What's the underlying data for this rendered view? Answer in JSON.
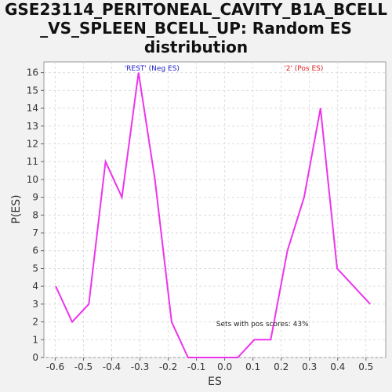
{
  "title_lines": [
    "GSE23114_PERITONEAL_CAVITY_B1A_BCELL",
    "_VS_SPLEEN_BCELL_UP: Random ES",
    "distribution"
  ],
  "colors": {
    "line": "#ee33ee",
    "neg_label": "#2222cc",
    "pos_label": "#dd2222",
    "plot_bg": "#ffffff",
    "grid": "#dddddd"
  },
  "chart_data": {
    "type": "line",
    "title": "GSE23114_PERITONEAL_CAVITY_B1A_BCELL_VS_SPLEEN_BCELL_UP: Random ES distribution",
    "xlabel": "ES",
    "ylabel": "P(ES)",
    "xlim": [
      -0.64,
      0.57
    ],
    "ylim": [
      0,
      16.6
    ],
    "xticks": [
      -0.6,
      -0.5,
      -0.4,
      -0.3,
      -0.2,
      -0.1,
      0.0,
      0.1,
      0.2,
      0.3,
      0.4,
      0.5
    ],
    "xtick_labels": [
      "-0.6",
      "-0.5",
      "-0.4",
      "-0.3",
      "-0.2",
      "-0.1",
      "0.0",
      "0.1",
      "0.2",
      "0.3",
      "0.4",
      "0.5"
    ],
    "yticks": [
      0,
      1,
      2,
      3,
      4,
      5,
      6,
      7,
      8,
      9,
      10,
      11,
      12,
      13,
      14,
      15,
      16
    ],
    "ytick_labels": [
      "0",
      "1",
      "2",
      "3",
      "4",
      "5",
      "6",
      "7",
      "8",
      "9",
      "10",
      "11",
      "12",
      "13",
      "14",
      "15",
      "16"
    ],
    "grid": true,
    "series": [
      {
        "x": [
          -0.598,
          -0.54,
          -0.481,
          -0.422,
          -0.364,
          -0.305,
          -0.247,
          -0.188,
          -0.13,
          -0.071,
          -0.012,
          0.046,
          0.105,
          0.163,
          0.222,
          0.281,
          0.339,
          0.398,
          0.515
        ],
        "y": [
          4,
          2,
          3,
          11,
          9,
          16,
          10,
          2,
          0,
          0,
          0,
          0,
          1,
          1,
          6,
          9,
          14,
          5,
          3
        ]
      }
    ],
    "annotations": [
      {
        "text": "'REST' (Neg ES)",
        "x": -0.355,
        "y": 16.25
      },
      {
        "text": "'2' (Pos ES)",
        "x": 0.21,
        "y": 16.25
      },
      {
        "text": "Sets with pos scores: 43%",
        "x": -0.03,
        "y": 1.9
      }
    ]
  }
}
